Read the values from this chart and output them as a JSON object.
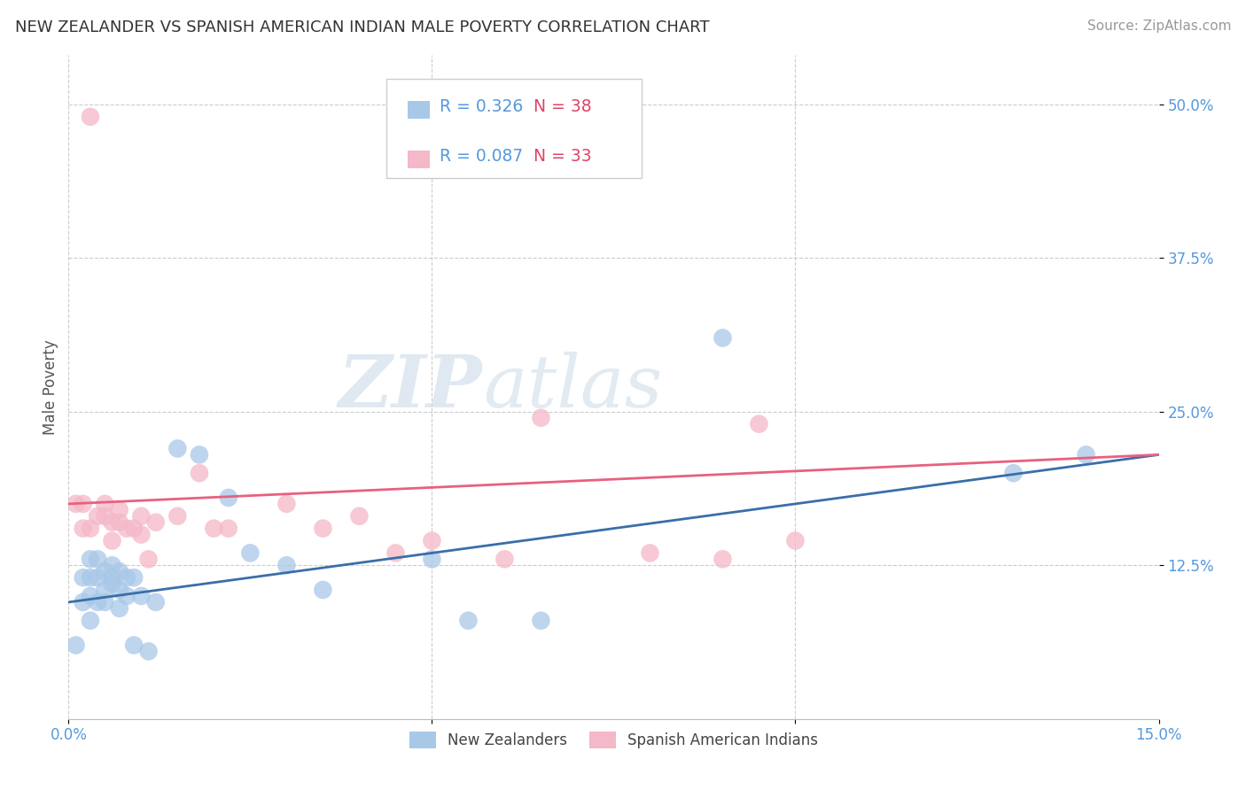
{
  "title": "NEW ZEALANDER VS SPANISH AMERICAN INDIAN MALE POVERTY CORRELATION CHART",
  "source": "Source: ZipAtlas.com",
  "ylabel": "Male Poverty",
  "xlim": [
    0.0,
    0.15
  ],
  "ylim": [
    0.0,
    0.54
  ],
  "xtick_positions": [
    0.0,
    0.05,
    0.1,
    0.15
  ],
  "xtick_labels": [
    "0.0%",
    "",
    "",
    "15.0%"
  ],
  "ytick_positions": [
    0.125,
    0.25,
    0.375,
    0.5
  ],
  "ytick_labels": [
    "12.5%",
    "25.0%",
    "37.5%",
    "50.0%"
  ],
  "watermark_zip": "ZIP",
  "watermark_atlas": "atlas",
  "legend_r1": "0.326",
  "legend_n1": "38",
  "legend_r2": "0.087",
  "legend_n2": "33",
  "color_blue": "#a8c8e8",
  "color_pink": "#f4b8c8",
  "line_blue": "#3a6ea8",
  "line_pink": "#e86080",
  "nz_x": [
    0.001,
    0.002,
    0.002,
    0.003,
    0.003,
    0.003,
    0.003,
    0.004,
    0.004,
    0.004,
    0.005,
    0.005,
    0.005,
    0.006,
    0.006,
    0.006,
    0.007,
    0.007,
    0.007,
    0.008,
    0.008,
    0.009,
    0.009,
    0.01,
    0.011,
    0.012,
    0.015,
    0.018,
    0.022,
    0.025,
    0.03,
    0.035,
    0.05,
    0.055,
    0.065,
    0.09,
    0.13,
    0.14
  ],
  "nz_y": [
    0.06,
    0.095,
    0.115,
    0.08,
    0.1,
    0.115,
    0.13,
    0.095,
    0.115,
    0.13,
    0.095,
    0.105,
    0.12,
    0.11,
    0.115,
    0.125,
    0.09,
    0.105,
    0.12,
    0.1,
    0.115,
    0.06,
    0.115,
    0.1,
    0.055,
    0.095,
    0.22,
    0.215,
    0.18,
    0.135,
    0.125,
    0.105,
    0.13,
    0.08,
    0.08,
    0.31,
    0.2,
    0.215
  ],
  "sai_x": [
    0.001,
    0.002,
    0.002,
    0.003,
    0.004,
    0.005,
    0.005,
    0.006,
    0.006,
    0.007,
    0.007,
    0.008,
    0.009,
    0.01,
    0.01,
    0.011,
    0.012,
    0.015,
    0.018,
    0.02,
    0.022,
    0.03,
    0.035,
    0.04,
    0.045,
    0.05,
    0.06,
    0.065,
    0.08,
    0.09,
    0.095,
    0.1,
    0.003
  ],
  "sai_y": [
    0.175,
    0.155,
    0.175,
    0.155,
    0.165,
    0.165,
    0.175,
    0.145,
    0.16,
    0.16,
    0.17,
    0.155,
    0.155,
    0.15,
    0.165,
    0.13,
    0.16,
    0.165,
    0.2,
    0.155,
    0.155,
    0.175,
    0.155,
    0.165,
    0.135,
    0.145,
    0.13,
    0.245,
    0.135,
    0.13,
    0.24,
    0.145,
    0.49
  ],
  "background_color": "#ffffff",
  "grid_color": "#cccccc",
  "title_fontsize": 13,
  "source_fontsize": 11,
  "tick_fontsize": 12,
  "ylabel_fontsize": 12
}
